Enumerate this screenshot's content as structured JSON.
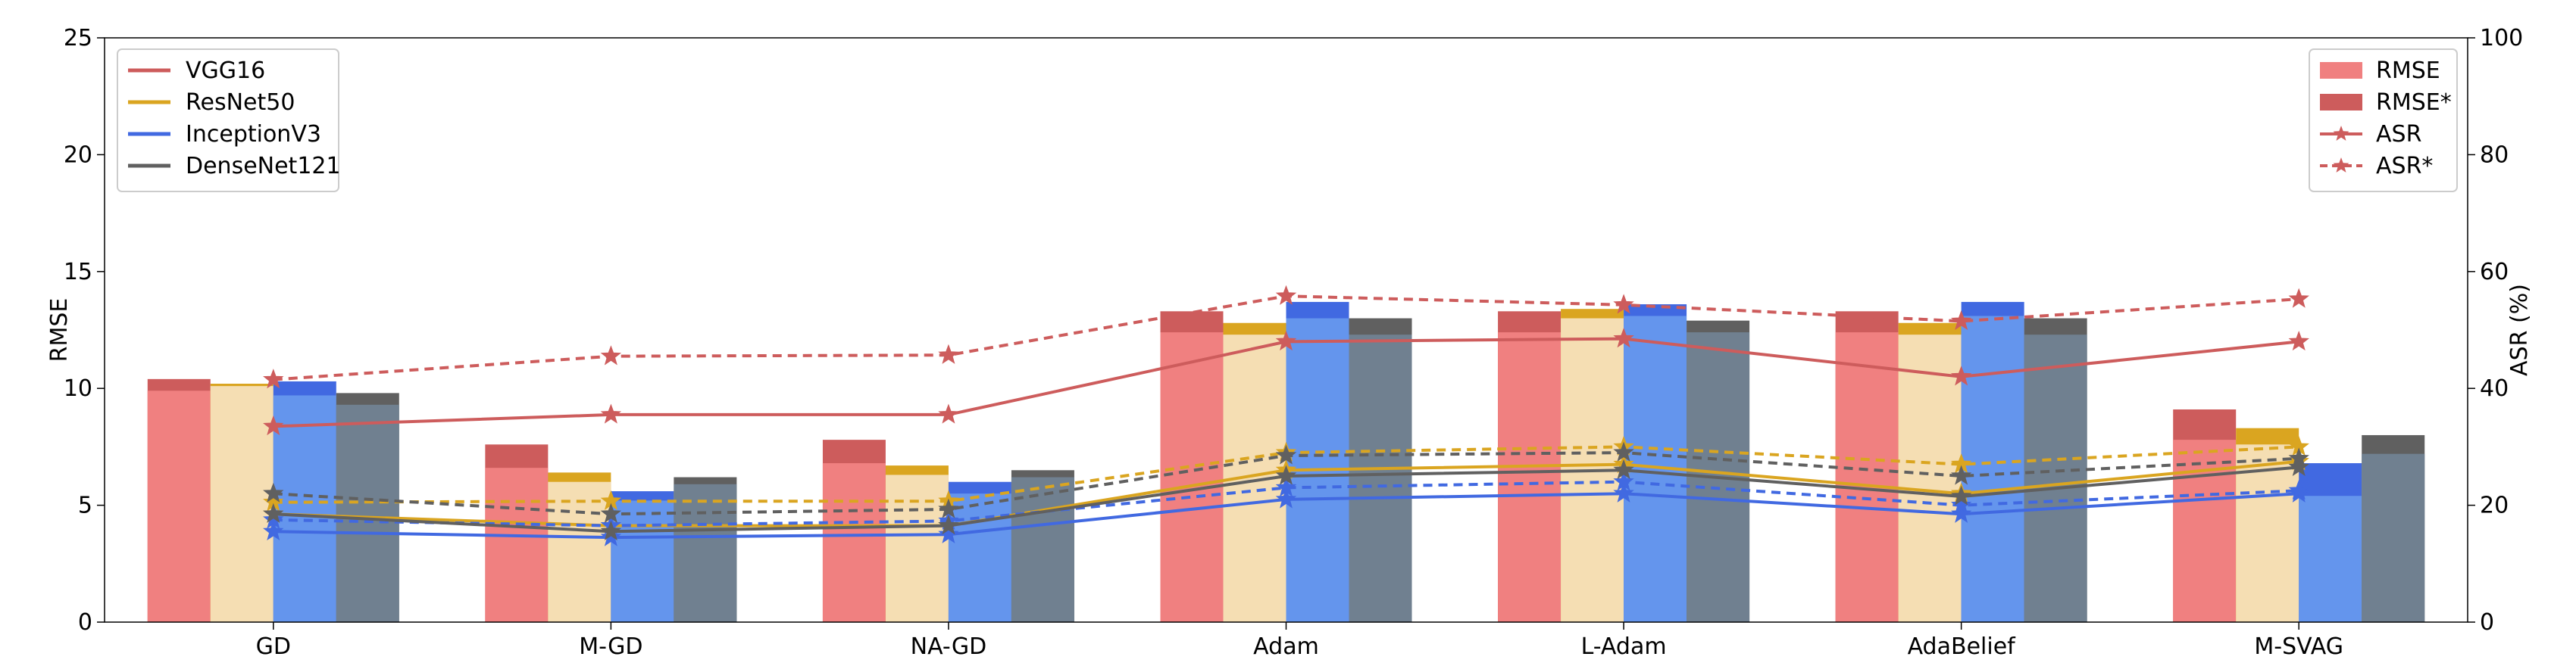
{
  "chart_data": {
    "type": "bar",
    "categories": [
      "GD",
      "M-GD",
      "NA-GD",
      "Adam",
      "L-Adam",
      "AdaBelief",
      "M-SVAG"
    ],
    "xlabel": "",
    "ylabel": "RMSE",
    "ylabel_right": "ASR (%)",
    "ylim": [
      0,
      25
    ],
    "ylim_right": [
      0,
      100
    ],
    "yticks": [
      0,
      5,
      10,
      15,
      20,
      25
    ],
    "yticks_right": [
      0,
      20,
      40,
      60,
      80,
      100
    ],
    "grid": false,
    "models": [
      {
        "name": "VGG16",
        "color": "#cd5c5c",
        "bar_color": "#f08080",
        "bar_star_color": "#cd5c5c",
        "rmse": [
          9.9,
          6.6,
          6.8,
          12.4,
          12.4,
          12.4,
          7.8
        ],
        "rmse_star": [
          10.4,
          7.6,
          7.8,
          13.3,
          13.3,
          13.3,
          9.1
        ],
        "asr": [
          33.5,
          35.5,
          35.5,
          48,
          48.5,
          42,
          48
        ],
        "asr_star": [
          41.5,
          45.5,
          45.7,
          55.8,
          54.3,
          51.5,
          55.3
        ]
      },
      {
        "name": "ResNet50",
        "color": "#daa520",
        "bar_color": "#f5deb3",
        "bar_star_color": "#daa520",
        "rmse": [
          10.1,
          6.0,
          6.3,
          12.3,
          13.0,
          12.3,
          7.6
        ],
        "rmse_star": [
          10.2,
          6.4,
          6.7,
          12.8,
          13.4,
          12.8,
          8.3
        ],
        "asr": [
          18.5,
          16.5,
          16.5,
          26,
          27,
          22,
          27.5
        ],
        "asr_star": [
          20.5,
          20.7,
          20.7,
          29,
          30,
          27,
          30
        ]
      },
      {
        "name": "InceptionV3",
        "color": "#4169e1",
        "bar_color": "#6495ed",
        "bar_star_color": "#4169e1",
        "rmse": [
          9.7,
          5.2,
          5.5,
          13.0,
          13.1,
          13.1,
          5.4
        ],
        "rmse_star": [
          10.3,
          5.6,
          6.0,
          13.7,
          13.6,
          13.7,
          6.8
        ],
        "asr": [
          15.5,
          14.5,
          15.0,
          21,
          22,
          18.5,
          22
        ],
        "asr_star": [
          17.5,
          16.5,
          17.3,
          23,
          24,
          20,
          22.5
        ]
      },
      {
        "name": "DenseNet121",
        "color": "#606060",
        "bar_color": "#708090",
        "bar_star_color": "#606060",
        "rmse": [
          9.3,
          5.9,
          6.2,
          12.3,
          12.4,
          12.3,
          7.2
        ],
        "rmse_star": [
          9.8,
          6.2,
          6.5,
          13.0,
          12.9,
          13.0,
          8.0
        ],
        "asr": [
          18.5,
          15.5,
          16.5,
          25,
          26,
          21.5,
          26.5
        ],
        "asr_star": [
          22,
          18.5,
          19.3,
          28.5,
          29,
          25,
          28
        ]
      }
    ],
    "legend_left": {
      "position": "top-left",
      "entries": [
        "VGG16",
        "ResNet50",
        "InceptionV3",
        "DenseNet121"
      ]
    },
    "legend_right": {
      "position": "top-right",
      "entries": [
        "RMSE",
        "RMSE*",
        "ASR",
        "ASR*"
      ]
    }
  }
}
